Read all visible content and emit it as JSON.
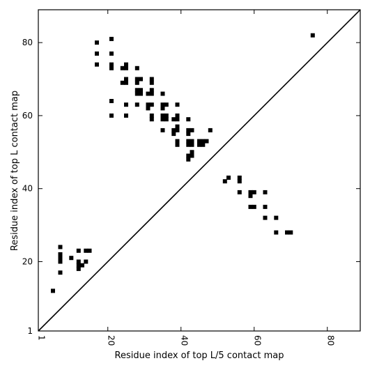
{
  "chart_data": {
    "type": "scatter",
    "marker": "square",
    "xlabel": "Residue index of top L/5 contact map",
    "ylabel": "Residue index of top L contact map",
    "xlim": [
      1,
      89
    ],
    "ylim": [
      1,
      89
    ],
    "xticks": [
      1,
      20,
      40,
      60,
      80
    ],
    "yticks": [
      1,
      20,
      40,
      60,
      80
    ],
    "xtick_labels": [
      "1",
      "20",
      "40",
      "60",
      "80"
    ],
    "ytick_labels": [
      "1",
      "20",
      "40",
      "60",
      "80"
    ],
    "diagonal": true,
    "colors": {
      "marker": "#000000",
      "axis": "#000000"
    },
    "series": [
      {
        "name": "",
        "points": [
          [
            76,
            82
          ],
          [
            17,
            80
          ],
          [
            21,
            81
          ],
          [
            17,
            77
          ],
          [
            21,
            77
          ],
          [
            17,
            74
          ],
          [
            21,
            74
          ],
          [
            21,
            73
          ],
          [
            25,
            74
          ],
          [
            24,
            73
          ],
          [
            25,
            73
          ],
          [
            28,
            73
          ],
          [
            25,
            70
          ],
          [
            24,
            69
          ],
          [
            25,
            69
          ],
          [
            28,
            70
          ],
          [
            29,
            70
          ],
          [
            28,
            69
          ],
          [
            32,
            70
          ],
          [
            32,
            69
          ],
          [
            28,
            67
          ],
          [
            29,
            67
          ],
          [
            28,
            66
          ],
          [
            29,
            66
          ],
          [
            31,
            66
          ],
          [
            32,
            67
          ],
          [
            32,
            66
          ],
          [
            35,
            66
          ],
          [
            21,
            64
          ],
          [
            25,
            63
          ],
          [
            28,
            63
          ],
          [
            31,
            63
          ],
          [
            32,
            63
          ],
          [
            31,
            62
          ],
          [
            35,
            63
          ],
          [
            36,
            63
          ],
          [
            35,
            62
          ],
          [
            39,
            63
          ],
          [
            21,
            60
          ],
          [
            25,
            60
          ],
          [
            32,
            60
          ],
          [
            32,
            59
          ],
          [
            35,
            60
          ],
          [
            36,
            60
          ],
          [
            35,
            59
          ],
          [
            36,
            59
          ],
          [
            38,
            59
          ],
          [
            39,
            60
          ],
          [
            39,
            59
          ],
          [
            42,
            59
          ],
          [
            39,
            57
          ],
          [
            38,
            56
          ],
          [
            39,
            56
          ],
          [
            42,
            56
          ],
          [
            43,
            56
          ],
          [
            42,
            55
          ],
          [
            48,
            56
          ],
          [
            35,
            56
          ],
          [
            38,
            55
          ],
          [
            39,
            53
          ],
          [
            39,
            52
          ],
          [
            42,
            53
          ],
          [
            43,
            53
          ],
          [
            42,
            52
          ],
          [
            43,
            52
          ],
          [
            45,
            53
          ],
          [
            46,
            53
          ],
          [
            47,
            53
          ],
          [
            45,
            52
          ],
          [
            46,
            52
          ],
          [
            43,
            50
          ],
          [
            42,
            49
          ],
          [
            43,
            49
          ],
          [
            42,
            48
          ],
          [
            53,
            43
          ],
          [
            52,
            42
          ],
          [
            56,
            43
          ],
          [
            56,
            42
          ],
          [
            56,
            39
          ],
          [
            59,
            39
          ],
          [
            60,
            39
          ],
          [
            59,
            38
          ],
          [
            63,
            39
          ],
          [
            59,
            35
          ],
          [
            60,
            35
          ],
          [
            63,
            35
          ],
          [
            63,
            32
          ],
          [
            66,
            32
          ],
          [
            66,
            28
          ],
          [
            69,
            28
          ],
          [
            70,
            28
          ],
          [
            7,
            24
          ],
          [
            7,
            22
          ],
          [
            7,
            21
          ],
          [
            7,
            20
          ],
          [
            10,
            21
          ],
          [
            12,
            23
          ],
          [
            14,
            23
          ],
          [
            15,
            23
          ],
          [
            12,
            20
          ],
          [
            14,
            20
          ],
          [
            12,
            19
          ],
          [
            13,
            19
          ],
          [
            12,
            18
          ],
          [
            7,
            17
          ],
          [
            5,
            12
          ]
        ]
      }
    ]
  }
}
